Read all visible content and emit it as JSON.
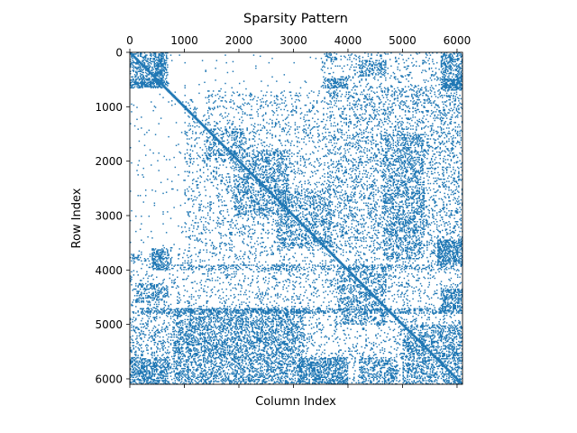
{
  "chart_data": {
    "type": "scatter",
    "subtype": "sparsity_pattern",
    "title": "Sparsity Pattern",
    "xlabel": "Column Index",
    "ylabel": "Row Index",
    "xlim": [
      0,
      6100
    ],
    "ylim": [
      6100,
      0
    ],
    "x_ticks": [
      0,
      1000,
      2000,
      3000,
      4000,
      5000,
      6000
    ],
    "y_ticks": [
      0,
      1000,
      2000,
      3000,
      4000,
      5000,
      6000
    ],
    "x_tick_labels": [
      "0",
      "1000",
      "2000",
      "3000",
      "4000",
      "5000",
      "6000"
    ],
    "y_tick_labels": [
      "0",
      "1000",
      "2000",
      "3000",
      "4000",
      "5000",
      "6000"
    ],
    "x_axis_position": "top",
    "grid": false,
    "marker_color": "#1f77b4",
    "diagonal": {
      "from": 0,
      "to": 6100
    },
    "dense_blocks": [
      {
        "rows": [
          0,
          600
        ],
        "cols": [
          0,
          600
        ],
        "density": 0.55
      },
      {
        "rows": [
          0,
          600
        ],
        "cols": [
          450,
          700
        ],
        "density": 0.8
      },
      {
        "rows": [
          480,
          660
        ],
        "cols": [
          0,
          600
        ],
        "density": 0.85
      },
      {
        "rows": [
          480,
          660
        ],
        "cols": [
          3550,
          4000
        ],
        "density": 0.8
      },
      {
        "rows": [
          0,
          150
        ],
        "cols": [
          3600,
          3800
        ],
        "density": 0.5
      },
      {
        "rows": [
          150,
          450
        ],
        "cols": [
          4200,
          4700
        ],
        "density": 0.55
      },
      {
        "rows": [
          0,
          700
        ],
        "cols": [
          5700,
          6100
        ],
        "density": 0.55
      },
      {
        "rows": [
          480,
          660
        ],
        "cols": [
          5700,
          6100
        ],
        "density": 0.85
      },
      {
        "rows": [
          1400,
          2000
        ],
        "cols": [
          1400,
          2100
        ],
        "density": 0.35
      },
      {
        "rows": [
          1800,
          3000
        ],
        "cols": [
          1900,
          2900
        ],
        "density": 0.45
      },
      {
        "rows": [
          2500,
          3600
        ],
        "cols": [
          2700,
          3700
        ],
        "density": 0.4
      },
      {
        "rows": [
          1500,
          3800
        ],
        "cols": [
          4650,
          5400
        ],
        "density": 0.35
      },
      {
        "rows": [
          3450,
          3900
        ],
        "cols": [
          5650,
          6100
        ],
        "density": 0.85
      },
      {
        "rows": [
          3600,
          4000
        ],
        "cols": [
          400,
          700
        ],
        "density": 0.8
      },
      {
        "rows": [
          3700,
          3800
        ],
        "cols": [
          0,
          150
        ],
        "density": 0.7
      },
      {
        "rows": [
          4250,
          4600
        ],
        "cols": [
          100,
          700
        ],
        "density": 0.5
      },
      {
        "rows": [
          4350,
          4800
        ],
        "cols": [
          5700,
          6100
        ],
        "density": 0.75
      },
      {
        "rows": [
          3900,
          5000
        ],
        "cols": [
          3800,
          4700
        ],
        "density": 0.4
      },
      {
        "rows": [
          4700,
          6100
        ],
        "cols": [
          800,
          3200
        ],
        "density": 0.4
      },
      {
        "rows": [
          5600,
          6100
        ],
        "cols": [
          0,
          700
        ],
        "density": 0.65
      },
      {
        "rows": [
          5600,
          6100
        ],
        "cols": [
          3100,
          4000
        ],
        "density": 0.75
      },
      {
        "rows": [
          5600,
          6100
        ],
        "cols": [
          4200,
          4900
        ],
        "density": 0.5
      },
      {
        "rows": [
          5000,
          6100
        ],
        "cols": [
          5000,
          6100
        ],
        "density": 0.5
      },
      {
        "rows": [
          4700,
          4800
        ],
        "cols": [
          200,
          5800
        ],
        "density": 0.55
      },
      {
        "rows": [
          3900,
          4000
        ],
        "cols": [
          700,
          6100
        ],
        "density": 0.35
      }
    ]
  }
}
